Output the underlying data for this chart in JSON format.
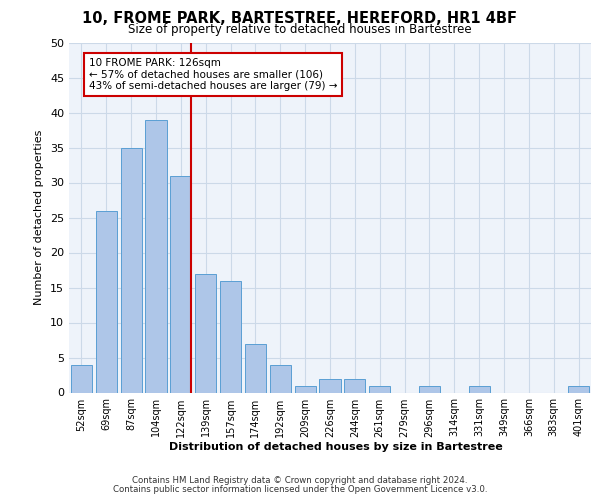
{
  "title": "10, FROME PARK, BARTESTREE, HEREFORD, HR1 4BF",
  "subtitle": "Size of property relative to detached houses in Bartestree",
  "xlabel": "Distribution of detached houses by size in Bartestree",
  "ylabel": "Number of detached properties",
  "categories": [
    "52sqm",
    "69sqm",
    "87sqm",
    "104sqm",
    "122sqm",
    "139sqm",
    "157sqm",
    "174sqm",
    "192sqm",
    "209sqm",
    "226sqm",
    "244sqm",
    "261sqm",
    "279sqm",
    "296sqm",
    "314sqm",
    "331sqm",
    "349sqm",
    "366sqm",
    "383sqm",
    "401sqm"
  ],
  "values": [
    4,
    26,
    35,
    39,
    31,
    17,
    16,
    7,
    4,
    1,
    2,
    2,
    1,
    0,
    1,
    0,
    1,
    0,
    0,
    0,
    1
  ],
  "bar_color": "#aec6e8",
  "bar_edge_color": "#5a9fd4",
  "grid_color": "#ccd9e8",
  "bg_color": "#eef3fa",
  "vline_x_index": 4,
  "vline_color": "#cc0000",
  "annotation_text": "10 FROME PARK: 126sqm\n← 57% of detached houses are smaller (106)\n43% of semi-detached houses are larger (79) →",
  "annotation_box_color": "#ffffff",
  "annotation_box_edge": "#cc0000",
  "ylim": [
    0,
    50
  ],
  "yticks": [
    0,
    5,
    10,
    15,
    20,
    25,
    30,
    35,
    40,
    45,
    50
  ],
  "footer_line1": "Contains HM Land Registry data © Crown copyright and database right 2024.",
  "footer_line2": "Contains public sector information licensed under the Open Government Licence v3.0."
}
